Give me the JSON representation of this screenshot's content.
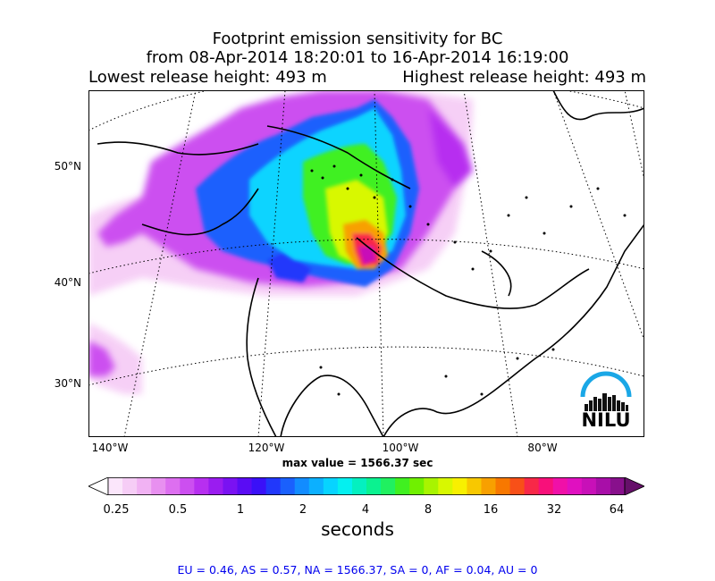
{
  "title": {
    "line1": "Footprint emission sensitivity for BC",
    "line2": "from 08-Apr-2014 18:20:01 to 16-Apr-2014 16:19:00",
    "lowest_release": "Lowest release height: 493 m",
    "highest_release": "Highest release height: 493 m"
  },
  "map": {
    "lat_labels": [
      "50°N",
      "40°N",
      "30°N"
    ],
    "lon_labels": [
      "140°W",
      "120°W",
      "100°W",
      "80°W"
    ],
    "max_value": "max value = 1566.37 sec",
    "logo_text": "NILU"
  },
  "colorbar": {
    "ticks": [
      "0.25",
      "0.5",
      "1",
      "2",
      "4",
      "8",
      "16",
      "32",
      "64"
    ],
    "units": "seconds",
    "colors": [
      "#ffffff",
      "#fbe6fb",
      "#f6cdf6",
      "#f1b2f3",
      "#e890f0",
      "#dd6ff0",
      "#cc4ff0",
      "#b72ff0",
      "#9a1cf0",
      "#7a12f2",
      "#5a0cf4",
      "#3a10f8",
      "#2138fb",
      "#1a60fd",
      "#128cff",
      "#0cb0ff",
      "#07d4ff",
      "#04f0f0",
      "#04f0c0",
      "#0af290",
      "#20f060",
      "#40f020",
      "#70f000",
      "#a8f400",
      "#d8f800",
      "#f8f000",
      "#f8c800",
      "#f8a000",
      "#f87800",
      "#f85018",
      "#f82848",
      "#f8107a",
      "#f010a8",
      "#e010c0",
      "#c810b8",
      "#a80ea8",
      "#88108c",
      "#66106a"
    ]
  },
  "summary": "EU = 0.46,  AS = 0.57,  NA = 1566.37,  SA = 0,  AF = 0.04,  AU = 0"
}
